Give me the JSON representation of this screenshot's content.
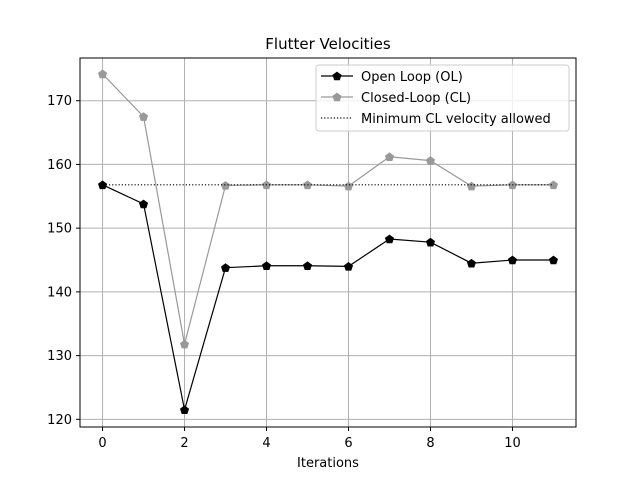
{
  "chart_data": {
    "type": "line",
    "title": "Flutter Velocities",
    "xlabel": "Iterations",
    "ylabel": "",
    "xlim": [
      -0.55,
      11.55
    ],
    "ylim": [
      118.8,
      176.7
    ],
    "xticks": [
      0,
      2,
      4,
      6,
      8,
      10
    ],
    "yticks": [
      120,
      130,
      140,
      150,
      160,
      170
    ],
    "grid": true,
    "legend_position": "top-right",
    "x": [
      0,
      1,
      2,
      3,
      4,
      5,
      6,
      7,
      8,
      9,
      10,
      11
    ],
    "series": [
      {
        "name": "Open Loop (OL)",
        "color": "#000000",
        "line_style": "solid",
        "marker": "pentagon",
        "values": [
          156.8,
          153.8,
          121.5,
          143.8,
          144.1,
          144.1,
          144.0,
          148.3,
          147.8,
          144.5,
          145.0,
          145.0
        ]
      },
      {
        "name": "Closed-Loop (CL)",
        "color": "#999999",
        "line_style": "solid",
        "marker": "pentagon",
        "values": [
          174.2,
          167.5,
          131.8,
          156.7,
          156.8,
          156.8,
          156.6,
          161.2,
          160.6,
          156.6,
          156.8,
          156.8
        ]
      },
      {
        "name": "Minimum CL velocity allowed",
        "color": "#000000",
        "line_style": "dotted",
        "marker": "none",
        "values": [
          156.8,
          156.8,
          156.8,
          156.8,
          156.8,
          156.8,
          156.8,
          156.8,
          156.8,
          156.8,
          156.8,
          156.8
        ]
      }
    ]
  }
}
